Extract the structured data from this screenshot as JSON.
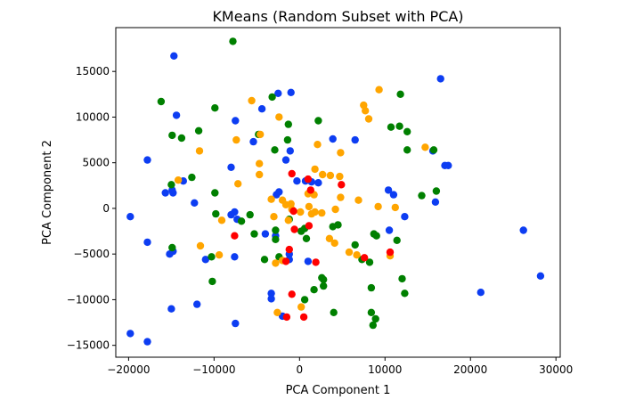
{
  "chart_data": {
    "type": "scatter",
    "title": "KMeans (Random Subset with PCA)",
    "xlabel": "PCA Component 1",
    "ylabel": "PCA Component 2",
    "xlim": [
      -21500,
      30500
    ],
    "ylim": [
      -16300,
      19800
    ],
    "xticks": [
      -20000,
      -10000,
      0,
      10000,
      20000,
      30000
    ],
    "yticks": [
      -15000,
      -10000,
      -5000,
      0,
      5000,
      10000,
      15000
    ],
    "grid": false,
    "series": [
      {
        "color": "#0d3df2",
        "points": [
          [
            -14700,
            16700
          ],
          [
            16500,
            14200
          ],
          [
            -1000,
            12700
          ],
          [
            -2500,
            12600
          ],
          [
            -14400,
            10200
          ],
          [
            -7500,
            9600
          ],
          [
            -4400,
            10900
          ],
          [
            -5400,
            7300
          ],
          [
            3900,
            7600
          ],
          [
            6500,
            7500
          ],
          [
            -1100,
            6300
          ],
          [
            -8000,
            4500
          ],
          [
            -1600,
            5300
          ],
          [
            -17800,
            5300
          ],
          [
            -13600,
            3000
          ],
          [
            17000,
            4700
          ],
          [
            17400,
            4700
          ],
          [
            15600,
            6300
          ],
          [
            -15700,
            1700
          ],
          [
            -14800,
            1700
          ],
          [
            -12300,
            600
          ],
          [
            -14900,
            2000
          ],
          [
            -2700,
            1500
          ],
          [
            -2400,
            1800
          ],
          [
            -300,
            3000
          ],
          [
            700,
            3000
          ],
          [
            1400,
            2900
          ],
          [
            2200,
            2800
          ],
          [
            10400,
            2000
          ],
          [
            11000,
            1500
          ],
          [
            15900,
            700
          ],
          [
            -7600,
            -400
          ],
          [
            -8000,
            -700
          ],
          [
            -7300,
            -1200
          ],
          [
            -4000,
            -2800
          ],
          [
            -19800,
            -900
          ],
          [
            12300,
            -900
          ],
          [
            10500,
            -2400
          ],
          [
            -17800,
            -3700
          ],
          [
            -14800,
            -4700
          ],
          [
            -15200,
            -5000
          ],
          [
            -7600,
            -5300
          ],
          [
            -11000,
            -5600
          ],
          [
            -2800,
            -3000
          ],
          [
            -1200,
            -5000
          ],
          [
            -1200,
            -5600
          ],
          [
            1000,
            -5800
          ],
          [
            -3300,
            -9300
          ],
          [
            -3300,
            -9900
          ],
          [
            -2000,
            -11800
          ],
          [
            -12000,
            -10500
          ],
          [
            -15000,
            -11000
          ],
          [
            -7500,
            -12600
          ],
          [
            -19800,
            -13700
          ],
          [
            -17800,
            -14600
          ],
          [
            21200,
            -9200
          ],
          [
            26200,
            -2400
          ],
          [
            28200,
            -7400
          ]
        ]
      },
      {
        "color": "#008000",
        "points": [
          [
            -7800,
            18300
          ],
          [
            -16200,
            11700
          ],
          [
            11800,
            12500
          ],
          [
            -3200,
            12200
          ],
          [
            -9900,
            11000
          ],
          [
            -1300,
            9200
          ],
          [
            2200,
            9600
          ],
          [
            10700,
            8900
          ],
          [
            11700,
            9000
          ],
          [
            12600,
            8400
          ],
          [
            -14900,
            8000
          ],
          [
            -13800,
            7700
          ],
          [
            -11800,
            8500
          ],
          [
            -4800,
            8100
          ],
          [
            -1400,
            7500
          ],
          [
            -2900,
            6400
          ],
          [
            12600,
            6400
          ],
          [
            15700,
            6400
          ],
          [
            -12600,
            3400
          ],
          [
            -15000,
            2600
          ],
          [
            -9900,
            1700
          ],
          [
            14300,
            1400
          ],
          [
            16000,
            1900
          ],
          [
            -9800,
            -600
          ],
          [
            -5800,
            -700
          ],
          [
            -6800,
            -1400
          ],
          [
            -1200,
            -1200
          ],
          [
            -2800,
            -2400
          ],
          [
            600,
            -2200
          ],
          [
            200,
            -2500
          ],
          [
            800,
            -3300
          ],
          [
            -5300,
            -2800
          ],
          [
            3900,
            -2000
          ],
          [
            4500,
            -1800
          ],
          [
            6500,
            -4000
          ],
          [
            8700,
            -2800
          ],
          [
            9000,
            -3000
          ],
          [
            11400,
            -3500
          ],
          [
            -10300,
            -5300
          ],
          [
            -10200,
            -8000
          ],
          [
            -14900,
            -4300
          ],
          [
            -4100,
            -5600
          ],
          [
            -2400,
            -5300
          ],
          [
            2800,
            -7800
          ],
          [
            2800,
            -8500
          ],
          [
            1700,
            -8900
          ],
          [
            7300,
            -5600
          ],
          [
            8200,
            -5900
          ],
          [
            12000,
            -7700
          ],
          [
            12300,
            -9300
          ],
          [
            8400,
            -8700
          ],
          [
            4000,
            -11400
          ],
          [
            600,
            -10000
          ],
          [
            8400,
            -11400
          ],
          [
            8900,
            -12100
          ],
          [
            8600,
            -12800
          ],
          [
            -2800,
            -3400
          ],
          [
            2600,
            -7600
          ]
        ]
      },
      {
        "color": "#ffa500",
        "points": [
          [
            9300,
            13000
          ],
          [
            -5600,
            11800
          ],
          [
            7500,
            11300
          ],
          [
            7700,
            10700
          ],
          [
            -2400,
            10000
          ],
          [
            8100,
            9800
          ],
          [
            -4600,
            8100
          ],
          [
            -7400,
            7500
          ],
          [
            2100,
            7000
          ],
          [
            -4700,
            4900
          ],
          [
            4800,
            6100
          ],
          [
            -11700,
            6300
          ],
          [
            -4700,
            3700
          ],
          [
            1800,
            4300
          ],
          [
            -14200,
            3100
          ],
          [
            -7200,
            2700
          ],
          [
            2700,
            3700
          ],
          [
            3600,
            3600
          ],
          [
            4700,
            3500
          ],
          [
            -3300,
            1000
          ],
          [
            -2000,
            900
          ],
          [
            -1600,
            400
          ],
          [
            -1000,
            500
          ],
          [
            1000,
            1600
          ],
          [
            1700,
            1500
          ],
          [
            4800,
            1200
          ],
          [
            6900,
            900
          ],
          [
            1100,
            200
          ],
          [
            1400,
            -600
          ],
          [
            1800,
            -400
          ],
          [
            2600,
            -500
          ],
          [
            -900,
            -100
          ],
          [
            -1300,
            -1300
          ],
          [
            -3000,
            -900
          ],
          [
            100,
            -400
          ],
          [
            4200,
            -100
          ],
          [
            9200,
            200
          ],
          [
            11200,
            100
          ],
          [
            -9100,
            -1300
          ],
          [
            -11600,
            -4100
          ],
          [
            -9400,
            -5100
          ],
          [
            3500,
            -3300
          ],
          [
            4100,
            -3800
          ],
          [
            5800,
            -4800
          ],
          [
            6700,
            -5100
          ],
          [
            -2800,
            -6000
          ],
          [
            -2000,
            -5700
          ],
          [
            10600,
            -5200
          ],
          [
            -2600,
            -11400
          ],
          [
            200,
            -10800
          ],
          [
            14700,
            6700
          ]
        ]
      },
      {
        "color": "#ff0000",
        "points": [
          [
            -900,
            3800
          ],
          [
            1000,
            3200
          ],
          [
            4900,
            2600
          ],
          [
            1300,
            2000
          ],
          [
            -700,
            -300
          ],
          [
            -1200,
            -4500
          ],
          [
            1100,
            -1900
          ],
          [
            -600,
            -2300
          ],
          [
            -7600,
            -3000
          ],
          [
            1900,
            -5900
          ],
          [
            -1600,
            -5800
          ],
          [
            10600,
            -4800
          ],
          [
            7600,
            -5400
          ],
          [
            -900,
            -9400
          ],
          [
            500,
            -11900
          ],
          [
            -1500,
            -11900
          ]
        ]
      }
    ]
  }
}
